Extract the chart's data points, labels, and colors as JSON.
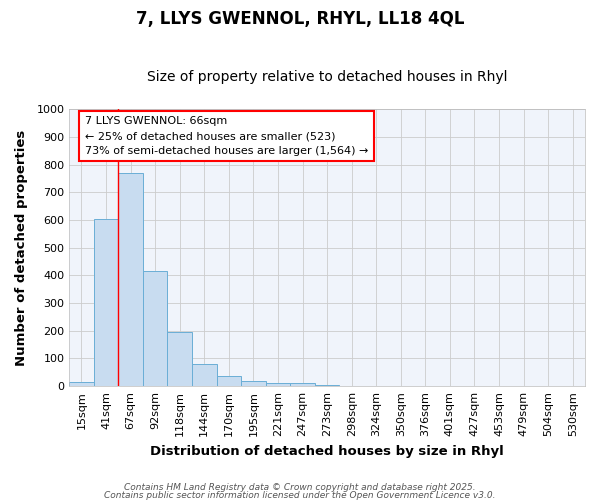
{
  "title1": "7, LLYS GWENNOL, RHYL, LL18 4QL",
  "title2": "Size of property relative to detached houses in Rhyl",
  "xlabel": "Distribution of detached houses by size in Rhyl",
  "ylabel": "Number of detached properties",
  "categories": [
    "15sqm",
    "41sqm",
    "67sqm",
    "92sqm",
    "118sqm",
    "144sqm",
    "170sqm",
    "195sqm",
    "221sqm",
    "247sqm",
    "273sqm",
    "298sqm",
    "324sqm",
    "350sqm",
    "376sqm",
    "401sqm",
    "427sqm",
    "453sqm",
    "479sqm",
    "504sqm",
    "530sqm"
  ],
  "values": [
    15,
    605,
    770,
    415,
    195,
    80,
    38,
    18,
    10,
    10,
    5,
    0,
    0,
    0,
    0,
    0,
    0,
    0,
    0,
    0,
    0
  ],
  "bar_color": "#c8dcf0",
  "bar_edgecolor": "#6aaed6",
  "bar_linewidth": 0.7,
  "grid_color": "#cccccc",
  "background_color": "#ffffff",
  "plot_bg_color": "#f0f4fb",
  "red_line_x": 1.5,
  "annotation_line1": "7 LLYS GWENNOL: 66sqm",
  "annotation_line2": "← 25% of detached houses are smaller (523)",
  "annotation_line3": "73% of semi-detached houses are larger (1,564) →",
  "annotation_fontsize": 8,
  "ylim": [
    0,
    1000
  ],
  "yticks": [
    0,
    100,
    200,
    300,
    400,
    500,
    600,
    700,
    800,
    900,
    1000
  ],
  "footer1": "Contains HM Land Registry data © Crown copyright and database right 2025.",
  "footer2": "Contains public sector information licensed under the Open Government Licence v3.0.",
  "title_fontsize": 12,
  "subtitle_fontsize": 10,
  "axis_label_fontsize": 9.5,
  "tick_fontsize": 8
}
